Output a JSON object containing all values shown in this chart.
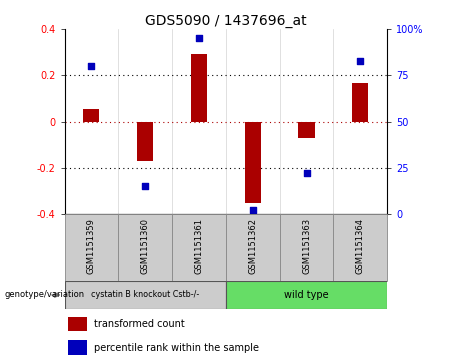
{
  "title": "GDS5090 / 1437696_at",
  "samples": [
    "GSM1151359",
    "GSM1151360",
    "GSM1151361",
    "GSM1151362",
    "GSM1151363",
    "GSM1151364"
  ],
  "red_values": [
    0.055,
    -0.17,
    0.29,
    -0.35,
    -0.07,
    0.165
  ],
  "blue_percentiles": [
    80,
    15,
    95,
    2,
    22,
    83
  ],
  "ylim": [
    -0.4,
    0.4
  ],
  "y2lim": [
    0,
    100
  ],
  "yticks": [
    -0.4,
    -0.2,
    0.0,
    0.2,
    0.4
  ],
  "y2ticks": [
    0,
    25,
    50,
    75,
    100
  ],
  "y2ticklabels": [
    "0",
    "25",
    "50",
    "75",
    "100%"
  ],
  "hlines": [
    0.2,
    0.0,
    -0.2
  ],
  "hline_colors": [
    "black",
    "#cc0000",
    "black"
  ],
  "hline_styles": [
    "dotted",
    "dotted",
    "dotted"
  ],
  "group1_label": "cystatin B knockout Cstb-/-",
  "group2_label": "wild type",
  "group1_color": "#cccccc",
  "group2_color": "#66dd66",
  "bar_color": "#aa0000",
  "dot_color": "#0000bb",
  "legend_red_label": "transformed count",
  "legend_blue_label": "percentile rank within the sample",
  "genotype_label": "genotype/variation",
  "title_fontsize": 10,
  "tick_fontsize": 7,
  "sample_fontsize": 6,
  "group1_indices": [
    0,
    1,
    2
  ],
  "group2_indices": [
    3,
    4,
    5
  ],
  "bg_color": "#ffffff"
}
